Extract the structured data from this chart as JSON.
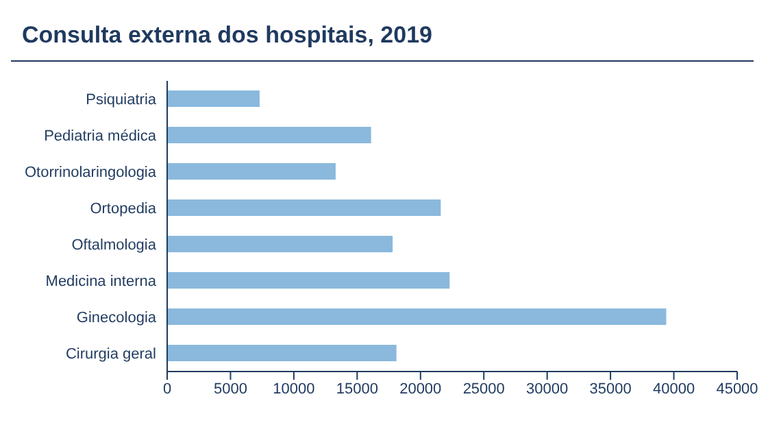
{
  "chart_data": {
    "type": "bar",
    "orientation": "horizontal",
    "title": "Consulta externa dos hospitais, 2019",
    "categories": [
      "Psiquiatria",
      "Pediatria médica",
      "Otorrinolaringologia",
      "Ortopedia",
      "Oftalmologia",
      "Medicina interna",
      "Ginecologia",
      "Cirurgia geral"
    ],
    "values": [
      7300,
      16100,
      13300,
      21600,
      17800,
      22300,
      39400,
      18100
    ],
    "color": "#8ab9dd",
    "xlim": [
      0,
      45000
    ],
    "xticks": [
      0,
      5000,
      10000,
      15000,
      20000,
      25000,
      30000,
      35000,
      40000,
      45000
    ],
    "grid": false
  }
}
